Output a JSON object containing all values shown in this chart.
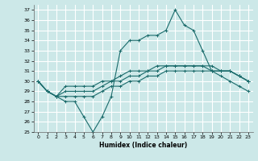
{
  "xlabel": "Humidex (Indice chaleur)",
  "bg_color": "#cce8e8",
  "grid_color": "#ffffff",
  "line_color": "#1a6b6b",
  "xlim": [
    -0.5,
    23.5
  ],
  "ylim": [
    25,
    37.5
  ],
  "yticks": [
    25,
    26,
    27,
    28,
    29,
    30,
    31,
    32,
    33,
    34,
    35,
    36,
    37
  ],
  "xticks": [
    0,
    1,
    2,
    3,
    4,
    5,
    6,
    7,
    8,
    9,
    10,
    11,
    12,
    13,
    14,
    15,
    16,
    17,
    18,
    19,
    20,
    21,
    22,
    23
  ],
  "series": [
    [
      30,
      29,
      28.5,
      28,
      28,
      26.5,
      25,
      26.5,
      28.5,
      33,
      34,
      34,
      34.5,
      34.5,
      35,
      37,
      35.5,
      35,
      33,
      31,
      31,
      31,
      30.5,
      30
    ],
    [
      30,
      29,
      28.5,
      28.5,
      28.5,
      28.5,
      28.5,
      29,
      29.5,
      29.5,
      30,
      30,
      30.5,
      30.5,
      31,
      31,
      31,
      31,
      31,
      31,
      31,
      31,
      30.5,
      30
    ],
    [
      30,
      29,
      28.5,
      29,
      29,
      29,
      29,
      29.5,
      30,
      30,
      30.5,
      30.5,
      31,
      31,
      31.5,
      31.5,
      31.5,
      31.5,
      31.5,
      31.5,
      31,
      31,
      30.5,
      30
    ],
    [
      30,
      29,
      28.5,
      29.5,
      29.5,
      29.5,
      29.5,
      30,
      30,
      30.5,
      31,
      31,
      31,
      31.5,
      31.5,
      31.5,
      31.5,
      31.5,
      31.5,
      31,
      30.5,
      30,
      29.5,
      29
    ]
  ]
}
